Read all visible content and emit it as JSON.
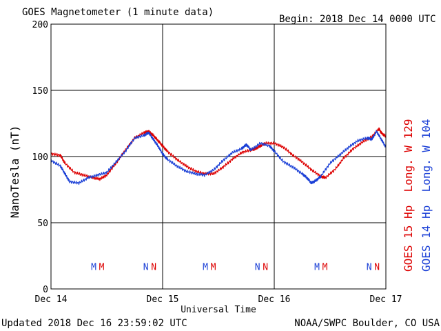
{
  "header": {
    "title": "GOES Magnetometer (1 minute data)",
    "begin": "Begin:  2018 Dec 14 0000 UTC"
  },
  "footer": {
    "updated": "Updated 2018 Dec 16 23:59:02 UTC",
    "source": "NOAA/SWPC Boulder, CO USA"
  },
  "colors": {
    "goes15": "#dd0000",
    "goes14": "#1a3fd6",
    "grid": "#000000"
  },
  "chart_data": {
    "type": "line",
    "title": "GOES Magnetometer (1 minute data)",
    "xlabel": "Universal Time",
    "ylabel": "NanoTesla (nT)",
    "xlim": [
      0,
      72
    ],
    "x_unit": "hours since 2018 Dec 14 0000 UTC",
    "ylim": [
      0,
      200
    ],
    "y_ticks": [
      0,
      50,
      100,
      150,
      200
    ],
    "x_ticks": [
      {
        "x": 0,
        "label": "Dec 14"
      },
      {
        "x": 24,
        "label": "Dec 15"
      },
      {
        "x": 48,
        "label": "Dec 16"
      },
      {
        "x": 72,
        "label": "Dec 17"
      }
    ],
    "grid": true,
    "legend": "right-vertical",
    "series": [
      {
        "name": "GOES 15 Hp  Long. W 129",
        "color": "#dd0000",
        "points": [
          [
            0,
            102
          ],
          [
            2,
            101
          ],
          [
            3,
            95
          ],
          [
            5,
            88
          ],
          [
            7,
            86
          ],
          [
            9,
            84
          ],
          [
            10.5,
            83
          ],
          [
            12,
            86
          ],
          [
            14,
            95
          ],
          [
            16,
            105
          ],
          [
            18,
            114
          ],
          [
            20,
            118
          ],
          [
            21,
            119
          ],
          [
            22,
            116
          ],
          [
            23,
            112
          ],
          [
            24,
            108
          ],
          [
            25,
            104
          ],
          [
            27,
            98
          ],
          [
            29,
            93
          ],
          [
            31,
            89
          ],
          [
            33,
            87
          ],
          [
            35,
            87
          ],
          [
            37,
            92
          ],
          [
            39,
            98
          ],
          [
            41,
            103
          ],
          [
            43,
            105
          ],
          [
            44,
            106
          ],
          [
            45,
            108
          ],
          [
            46,
            110
          ],
          [
            48,
            110
          ],
          [
            50,
            107
          ],
          [
            52,
            101
          ],
          [
            54,
            96
          ],
          [
            56,
            90
          ],
          [
            58,
            85
          ],
          [
            59,
            84
          ],
          [
            61,
            90
          ],
          [
            63,
            99
          ],
          [
            65,
            106
          ],
          [
            67,
            111
          ],
          [
            69,
            115
          ],
          [
            70.5,
            121
          ],
          [
            71,
            118
          ],
          [
            72,
            115
          ]
        ]
      },
      {
        "name": "GOES 14 Hp  Long. W 104",
        "color": "#1a3fd6",
        "points": [
          [
            0,
            97
          ],
          [
            2,
            93
          ],
          [
            3,
            87
          ],
          [
            4,
            81
          ],
          [
            6,
            80
          ],
          [
            8,
            84
          ],
          [
            10,
            86
          ],
          [
            12,
            88
          ],
          [
            14,
            96
          ],
          [
            16,
            104
          ],
          [
            18,
            114
          ],
          [
            20,
            116
          ],
          [
            21,
            118
          ],
          [
            22,
            113
          ],
          [
            23,
            108
          ],
          [
            24,
            102
          ],
          [
            25,
            98
          ],
          [
            27,
            93
          ],
          [
            29,
            89
          ],
          [
            31,
            87
          ],
          [
            33,
            86
          ],
          [
            35,
            90
          ],
          [
            37,
            97
          ],
          [
            39,
            103
          ],
          [
            41,
            106
          ],
          [
            42,
            109
          ],
          [
            43,
            105
          ],
          [
            45,
            110
          ],
          [
            47,
            108
          ],
          [
            48,
            104
          ],
          [
            50,
            96
          ],
          [
            52,
            92
          ],
          [
            54,
            87
          ],
          [
            55,
            84
          ],
          [
            56,
            80
          ],
          [
            57,
            82
          ],
          [
            58,
            85
          ],
          [
            60,
            95
          ],
          [
            62,
            101
          ],
          [
            64,
            107
          ],
          [
            66,
            112
          ],
          [
            68,
            114
          ],
          [
            69,
            113
          ],
          [
            70,
            119
          ],
          [
            71,
            113
          ],
          [
            72,
            107
          ]
        ]
      }
    ],
    "annotations": [
      {
        "x": 9.2,
        "text": "M",
        "series": "GOES 14 Hp  Long. W 104"
      },
      {
        "x": 10.9,
        "text": "M",
        "series": "GOES 15 Hp  Long. W 129"
      },
      {
        "x": 20.4,
        "text": "N",
        "series": "GOES 14 Hp  Long. W 104"
      },
      {
        "x": 22.1,
        "text": "N",
        "series": "GOES 15 Hp  Long. W 129"
      },
      {
        "x": 33.2,
        "text": "M",
        "series": "GOES 14 Hp  Long. W 104"
      },
      {
        "x": 34.9,
        "text": "M",
        "series": "GOES 15 Hp  Long. W 129"
      },
      {
        "x": 44.4,
        "text": "N",
        "series": "GOES 14 Hp  Long. W 104"
      },
      {
        "x": 46.1,
        "text": "N",
        "series": "GOES 15 Hp  Long. W 129"
      },
      {
        "x": 57.2,
        "text": "M",
        "series": "GOES 14 Hp  Long. W 104"
      },
      {
        "x": 58.9,
        "text": "M",
        "series": "GOES 15 Hp  Long. W 129"
      },
      {
        "x": 68.4,
        "text": "N",
        "series": "GOES 14 Hp  Long. W 104"
      },
      {
        "x": 70.1,
        "text": "N",
        "series": "GOES 15 Hp  Long. W 129"
      }
    ],
    "annotation_y": 17
  }
}
